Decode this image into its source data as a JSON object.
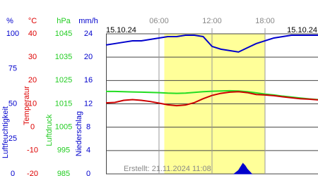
{
  "chart_data": {
    "type": "line",
    "date_left": "15.10.24",
    "date_right": "15.10.24",
    "annotation": "Erstellt: 21.11.2024 11:08",
    "xlim": [
      0,
      24
    ],
    "xticks": [
      {
        "value": 6,
        "label": "06:00"
      },
      {
        "value": 12,
        "label": "12:00"
      },
      {
        "value": 18,
        "label": "18:00"
      }
    ],
    "highlight_x": [
      6.6,
      18
    ],
    "highlight_color": "#ffff99",
    "grid": true,
    "axes": [
      {
        "unit": "%",
        "label": "Luftfeuchtigkeit",
        "color": "#0000cc",
        "lim": [
          0,
          100
        ],
        "ticks": [
          0,
          25,
          50,
          75,
          100
        ]
      },
      {
        "unit": "°C",
        "label": "Temperatur",
        "color": "#dd0000",
        "lim": [
          -20,
          40
        ],
        "ticks": [
          -20,
          -10,
          0,
          10,
          20,
          30,
          40
        ]
      },
      {
        "unit": "hPa",
        "label": "Luftdruck",
        "color": "#22cc22",
        "lim": [
          985,
          1045
        ],
        "ticks": [
          985,
          995,
          1005,
          1015,
          1025,
          1035,
          1045
        ]
      },
      {
        "unit": "mm/h",
        "label": "Niederschlag",
        "color": "#0000cc",
        "lim": [
          0,
          24
        ],
        "ticks": [
          0,
          4,
          8,
          12,
          16,
          20,
          24
        ]
      }
    ],
    "x": [
      0,
      1,
      2,
      3,
      4,
      5,
      6,
      7,
      8,
      9,
      10,
      11,
      12,
      13,
      14,
      15,
      16,
      17,
      18,
      19,
      20,
      21,
      22,
      23,
      24
    ],
    "series": [
      {
        "axis": 0,
        "color": "#0000cc",
        "values": [
          92,
          93,
          94,
          95,
          95,
          96,
          97,
          98,
          98,
          99,
          99,
          98,
          91,
          89,
          88,
          87,
          90,
          93,
          95,
          97,
          98,
          99,
          99,
          99,
          99
        ]
      },
      {
        "axis": 2,
        "color": "#22dd22",
        "values": [
          1020.3,
          1020.3,
          1020.2,
          1020.1,
          1020.0,
          1019.9,
          1019.8,
          1019.6,
          1019.5,
          1019.6,
          1019.9,
          1020.2,
          1020.4,
          1020.5,
          1020.6,
          1020.5,
          1020.2,
          1019.7,
          1019.2,
          1018.8,
          1018.3,
          1017.9,
          1017.5,
          1017.1,
          1016.8
        ]
      },
      {
        "axis": 1,
        "color": "#cc0000",
        "values": [
          10.4,
          10.6,
          11.5,
          11.8,
          11.5,
          11.0,
          10.3,
          9.6,
          9.2,
          9.5,
          10.5,
          12.2,
          13.6,
          14.5,
          15.0,
          15.2,
          14.8,
          14.0,
          13.8,
          13.5,
          13.0,
          12.6,
          12.2,
          12.0,
          11.7
        ]
      },
      {
        "axis": 3,
        "color": "#0000cc",
        "area": true,
        "x": [
          14.5,
          15,
          15.25,
          15.5,
          15.75,
          16,
          16.5
        ],
        "values": [
          0,
          0.6,
          1.2,
          1.8,
          1.4,
          0.8,
          0
        ]
      }
    ]
  }
}
